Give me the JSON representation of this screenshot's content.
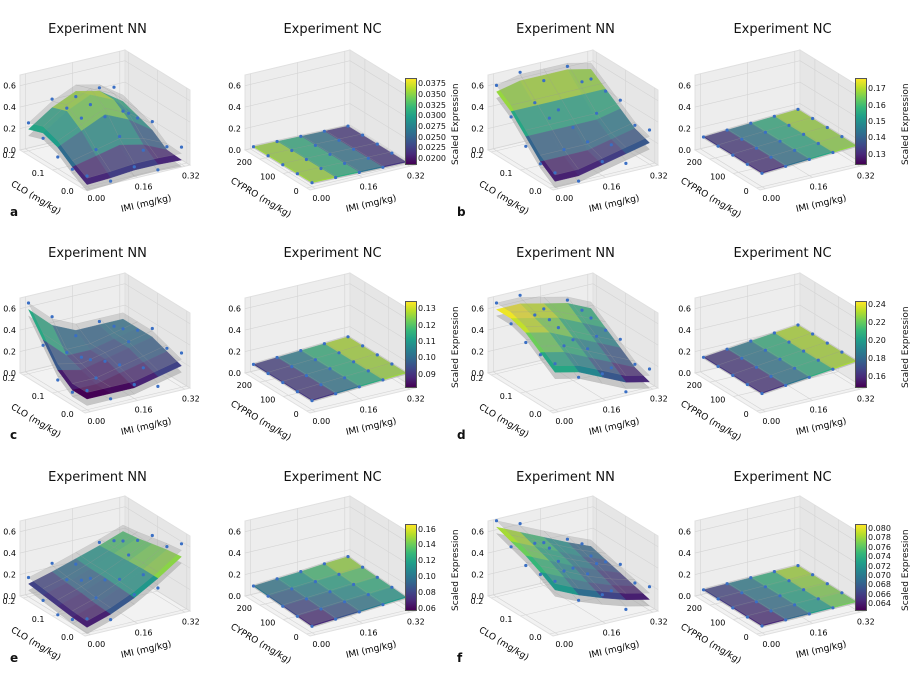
{
  "panel_labels": [
    "a",
    "b",
    "c",
    "d",
    "e",
    "f"
  ],
  "colors": {
    "point": "#3a6fc4",
    "uncertainty_surface": "#9a9a9a",
    "colormap": "viridis"
  },
  "chart_data": [
    {
      "panel": "a",
      "type": "surface3d",
      "title": "Experiment NN",
      "xlabel": "IMI (mg/kg)",
      "ylabel": "CLO (mg/kg)",
      "xticks": [
        "0.00",
        "0.16",
        "0.32"
      ],
      "yticks": [
        "0.0",
        "0.1",
        "0.2"
      ],
      "zticks": [
        "0.0",
        "0.2",
        "0.4",
        "0.6"
      ],
      "z": [
        [
          0.02,
          0.03,
          0.05,
          0.05,
          0.04
        ],
        [
          0.1,
          0.15,
          0.2,
          0.15,
          0.05
        ],
        [
          0.2,
          0.3,
          0.4,
          0.3,
          0.15
        ],
        [
          0.25,
          0.4,
          0.5,
          0.4,
          0.2
        ],
        [
          0.2,
          0.35,
          0.45,
          0.4,
          0.25
        ]
      ]
    },
    {
      "panel": "a",
      "type": "surface3d",
      "title": "Experiment NC",
      "xlabel": "IMI (mg/kg)",
      "ylabel": "CYPRO (mg/kg)",
      "xticks": [
        "0.00",
        "0.16",
        "0.32"
      ],
      "yticks": [
        "0",
        "100",
        "200"
      ],
      "zticks": [
        "0.0",
        "0.2",
        "0.4",
        "0.6"
      ],
      "z": [
        [
          0.038,
          0.034,
          0.029,
          0.024,
          0.02
        ],
        [
          0.038,
          0.034,
          0.029,
          0.024,
          0.02
        ],
        [
          0.038,
          0.034,
          0.029,
          0.024,
          0.02
        ],
        [
          0.038,
          0.034,
          0.029,
          0.024,
          0.02
        ],
        [
          0.038,
          0.034,
          0.029,
          0.024,
          0.02
        ]
      ],
      "colorbar": {
        "label": "Scaled Expression",
        "range": [
          0.019,
          0.039
        ],
        "ticks": [
          "0.0200",
          "0.0225",
          "0.0250",
          "0.0275",
          "0.0300",
          "0.0325",
          "0.0350",
          "0.0375"
        ],
        "tick_values": [
          0.02,
          0.0225,
          0.025,
          0.0275,
          0.03,
          0.0325,
          0.035,
          0.0375
        ]
      }
    },
    {
      "panel": "b",
      "type": "surface3d",
      "title": "Experiment NN",
      "xlabel": "IMI (mg/kg)",
      "ylabel": "CLO (mg/kg)",
      "xticks": [
        "0.00",
        "0.16",
        "0.32"
      ],
      "yticks": [
        "0.0",
        "0.1",
        "0.2"
      ],
      "zticks": [
        "0.0",
        "0.2",
        "0.4",
        "0.6"
      ],
      "z": [
        [
          0.05,
          0.05,
          0.1,
          0.15,
          0.2
        ],
        [
          0.15,
          0.15,
          0.15,
          0.2,
          0.25
        ],
        [
          0.3,
          0.3,
          0.3,
          0.3,
          0.35
        ],
        [
          0.45,
          0.45,
          0.45,
          0.45,
          0.45
        ],
        [
          0.55,
          0.6,
          0.6,
          0.6,
          0.55
        ]
      ]
    },
    {
      "panel": "b",
      "type": "surface3d",
      "title": "Experiment NC",
      "xlabel": "IMI (mg/kg)",
      "ylabel": "CYPRO (mg/kg)",
      "xticks": [
        "0.00",
        "0.16",
        "0.32"
      ],
      "yticks": [
        "0",
        "100",
        "200"
      ],
      "zticks": [
        "0.0",
        "0.2",
        "0.4",
        "0.6"
      ],
      "z": [
        [
          0.126,
          0.138,
          0.15,
          0.162,
          0.174
        ],
        [
          0.126,
          0.138,
          0.15,
          0.162,
          0.174
        ],
        [
          0.127,
          0.139,
          0.151,
          0.163,
          0.175
        ],
        [
          0.127,
          0.139,
          0.151,
          0.163,
          0.175
        ],
        [
          0.128,
          0.14,
          0.152,
          0.164,
          0.176
        ]
      ],
      "colorbar": {
        "label": "Scaled Expression",
        "range": [
          0.125,
          0.177
        ],
        "ticks": [
          "0.13",
          "0.14",
          "0.15",
          "0.16",
          "0.17"
        ],
        "tick_values": [
          0.13,
          0.14,
          0.15,
          0.16,
          0.17
        ]
      }
    },
    {
      "panel": "c",
      "type": "surface3d",
      "title": "Experiment NN",
      "xlabel": "IMI (mg/kg)",
      "ylabel": "CLO (mg/kg)",
      "xticks": [
        "0.00",
        "0.16",
        "0.32"
      ],
      "yticks": [
        "0.0",
        "0.1",
        "0.2"
      ],
      "zticks": [
        "0.0",
        "0.2",
        "0.4",
        "0.6"
      ],
      "z": [
        [
          0.1,
          0.1,
          0.1,
          0.15,
          0.2
        ],
        [
          0.1,
          0.1,
          0.15,
          0.2,
          0.25
        ],
        [
          0.2,
          0.15,
          0.2,
          0.25,
          0.3
        ],
        [
          0.4,
          0.2,
          0.2,
          0.25,
          0.3
        ],
        [
          0.6,
          0.4,
          0.3,
          0.3,
          0.3
        ]
      ]
    },
    {
      "panel": "c",
      "type": "surface3d",
      "title": "Experiment NC",
      "xlabel": "IMI (mg/kg)",
      "ylabel": "CYPRO (mg/kg)",
      "xticks": [
        "0.00",
        "0.16",
        "0.32"
      ],
      "yticks": [
        "0",
        "100",
        "200"
      ],
      "zticks": [
        "0.0",
        "0.2",
        "0.4",
        "0.6"
      ],
      "z": [
        [
          0.085,
          0.097,
          0.109,
          0.121,
          0.133
        ],
        [
          0.085,
          0.097,
          0.109,
          0.121,
          0.133
        ],
        [
          0.086,
          0.098,
          0.11,
          0.122,
          0.134
        ],
        [
          0.086,
          0.098,
          0.11,
          0.122,
          0.134
        ],
        [
          0.087,
          0.099,
          0.111,
          0.123,
          0.135
        ]
      ],
      "colorbar": {
        "label": "Scaled Expression",
        "range": [
          0.083,
          0.135
        ],
        "ticks": [
          "0.09",
          "0.10",
          "0.11",
          "0.12",
          "0.13"
        ],
        "tick_values": [
          0.09,
          0.1,
          0.11,
          0.12,
          0.13
        ]
      }
    },
    {
      "panel": "d",
      "type": "surface3d",
      "title": "Experiment NN",
      "xlabel": "IMI (mg/kg)",
      "ylabel": "CLO (mg/kg)",
      "xticks": [
        "0.00",
        "0.16",
        "0.32"
      ],
      "yticks": [
        "0.0",
        "0.1",
        "0.2"
      ],
      "zticks": [
        "0.0",
        "0.2",
        "0.4",
        "0.6"
      ],
      "z": [
        [
          0.35,
          0.3,
          0.2,
          0.1,
          0.05
        ],
        [
          0.45,
          0.4,
          0.3,
          0.2,
          0.1
        ],
        [
          0.55,
          0.5,
          0.4,
          0.3,
          0.2
        ],
        [
          0.6,
          0.55,
          0.5,
          0.4,
          0.3
        ],
        [
          0.6,
          0.6,
          0.55,
          0.5,
          0.4
        ]
      ]
    },
    {
      "panel": "d",
      "type": "surface3d",
      "title": "Experiment NC",
      "xlabel": "IMI (mg/kg)",
      "ylabel": "CYPRO (mg/kg)",
      "xticks": [
        "0.00",
        "0.16",
        "0.32"
      ],
      "yticks": [
        "0",
        "100",
        "200"
      ],
      "zticks": [
        "0.0",
        "0.2",
        "0.4",
        "0.6"
      ],
      "z": [
        [
          0.152,
          0.175,
          0.198,
          0.221,
          0.244
        ],
        [
          0.152,
          0.175,
          0.198,
          0.221,
          0.244
        ],
        [
          0.153,
          0.176,
          0.199,
          0.222,
          0.244
        ],
        [
          0.153,
          0.176,
          0.199,
          0.222,
          0.245
        ],
        [
          0.154,
          0.177,
          0.2,
          0.223,
          0.245
        ]
      ],
      "colorbar": {
        "label": "Scaled Expression",
        "range": [
          0.15,
          0.245
        ],
        "ticks": [
          "0.16",
          "0.18",
          "0.20",
          "0.22",
          "0.24"
        ],
        "tick_values": [
          0.16,
          0.18,
          0.2,
          0.22,
          0.24
        ]
      }
    },
    {
      "panel": "e",
      "type": "surface3d",
      "title": "Experiment NN",
      "xlabel": "IMI (mg/kg)",
      "ylabel": "CLO (mg/kg)",
      "xticks": [
        "0.00",
        "0.16",
        "0.32"
      ],
      "yticks": [
        "0.0",
        "0.1",
        "0.2"
      ],
      "zticks": [
        "0.0",
        "0.2",
        "0.4",
        "0.6"
      ],
      "z": [
        [
          0.05,
          0.12,
          0.22,
          0.35,
          0.5
        ],
        [
          0.06,
          0.13,
          0.23,
          0.35,
          0.48
        ],
        [
          0.08,
          0.15,
          0.24,
          0.34,
          0.45
        ],
        [
          0.1,
          0.16,
          0.24,
          0.33,
          0.42
        ],
        [
          0.12,
          0.18,
          0.25,
          0.32,
          0.4
        ]
      ]
    },
    {
      "panel": "e",
      "type": "surface3d",
      "title": "Experiment NC",
      "xlabel": "IMI (mg/kg)",
      "ylabel": "CYPRO (mg/kg)",
      "xticks": [
        "0.00",
        "0.16",
        "0.32"
      ],
      "yticks": [
        "0",
        "100",
        "200"
      ],
      "zticks": [
        "0.0",
        "0.2",
        "0.4",
        "0.6"
      ],
      "z": [
        [
          0.06,
          0.075,
          0.09,
          0.105,
          0.12
        ],
        [
          0.07,
          0.085,
          0.1,
          0.115,
          0.13
        ],
        [
          0.08,
          0.095,
          0.11,
          0.125,
          0.14
        ],
        [
          0.09,
          0.105,
          0.12,
          0.135,
          0.15
        ],
        [
          0.1,
          0.115,
          0.13,
          0.15,
          0.165
        ]
      ],
      "colorbar": {
        "label": "Scaled Expression",
        "range": [
          0.06,
          0.167
        ],
        "ticks": [
          "0.06",
          "0.08",
          "0.10",
          "0.12",
          "0.14",
          "0.16"
        ],
        "tick_values": [
          0.06,
          0.08,
          0.1,
          0.12,
          0.14,
          0.16
        ]
      }
    },
    {
      "panel": "f",
      "type": "surface3d",
      "title": "Experiment NN",
      "xlabel": "IMI (mg/kg)",
      "ylabel": "CLO (mg/kg)",
      "xticks": [
        "0.00",
        "0.16",
        "0.32"
      ],
      "yticks": [
        "0.0",
        "0.1",
        "0.2"
      ],
      "zticks": [
        "0.0",
        "0.2",
        "0.4",
        "0.6"
      ],
      "z": [
        [
          0.4,
          0.3,
          0.22,
          0.15,
          0.1
        ],
        [
          0.48,
          0.38,
          0.28,
          0.2,
          0.14
        ],
        [
          0.55,
          0.45,
          0.35,
          0.26,
          0.18
        ],
        [
          0.6,
          0.5,
          0.4,
          0.3,
          0.22
        ],
        [
          0.65,
          0.55,
          0.45,
          0.35,
          0.26
        ]
      ]
    },
    {
      "panel": "f",
      "type": "surface3d",
      "title": "Experiment NC",
      "xlabel": "IMI (mg/kg)",
      "ylabel": "CYPRO (mg/kg)",
      "xticks": [
        "0.00",
        "0.16",
        "0.32"
      ],
      "yticks": [
        "0",
        "100",
        "200"
      ],
      "zticks": [
        "0.0",
        "0.2",
        "0.4",
        "0.6"
      ],
      "z": [
        [
          0.063,
          0.067,
          0.071,
          0.075,
          0.079
        ],
        [
          0.063,
          0.067,
          0.071,
          0.075,
          0.079
        ],
        [
          0.064,
          0.068,
          0.072,
          0.076,
          0.08
        ],
        [
          0.064,
          0.068,
          0.072,
          0.076,
          0.08
        ],
        [
          0.065,
          0.069,
          0.073,
          0.077,
          0.081
        ]
      ],
      "colorbar": {
        "label": "Scaled Expression",
        "range": [
          0.063,
          0.081
        ],
        "ticks": [
          "0.064",
          "0.066",
          "0.068",
          "0.070",
          "0.072",
          "0.074",
          "0.076",
          "0.078",
          "0.080"
        ],
        "tick_values": [
          0.064,
          0.066,
          0.068,
          0.07,
          0.072,
          0.074,
          0.076,
          0.078,
          0.08
        ]
      }
    }
  ]
}
